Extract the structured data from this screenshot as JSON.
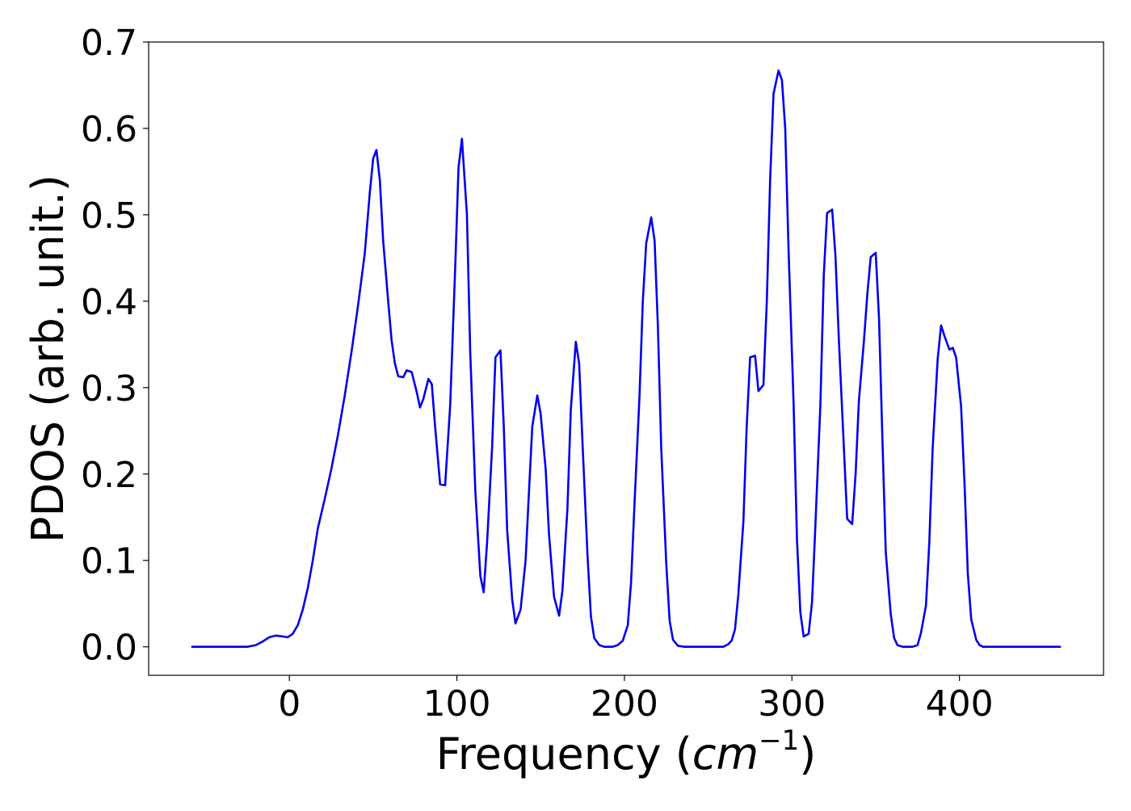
{
  "chart_data": {
    "type": "line",
    "title": "",
    "xlabel": "Frequency (cm⁻¹)",
    "xlabel_parts": {
      "prefix": "Frequency (",
      "italic": "cm",
      "superscript": "−1",
      "suffix": ")"
    },
    "ylabel": "PDOS (arb. unit.)",
    "xlim": [
      -84,
      486
    ],
    "ylim": [
      -0.033,
      0.7
    ],
    "xticks": [
      0,
      100,
      200,
      300,
      400
    ],
    "xtick_labels": [
      "0",
      "100",
      "200",
      "300",
      "400"
    ],
    "yticks": [
      0.0,
      0.1,
      0.2,
      0.3,
      0.4,
      0.5,
      0.6,
      0.7
    ],
    "ytick_labels": [
      "0.0",
      "0.1",
      "0.2",
      "0.3",
      "0.4",
      "0.5",
      "0.6",
      "0.7"
    ],
    "grid": false,
    "legend": "none",
    "series": [
      {
        "color": "#0000ee",
        "points": [
          [
            -58,
            0.0
          ],
          [
            -30,
            0.0
          ],
          [
            -25,
            0.0
          ],
          [
            -20,
            0.002
          ],
          [
            -16,
            0.006
          ],
          [
            -12,
            0.011
          ],
          [
            -8,
            0.013
          ],
          [
            -4,
            0.012
          ],
          [
            -1,
            0.011
          ],
          [
            2,
            0.015
          ],
          [
            5,
            0.025
          ],
          [
            8,
            0.043
          ],
          [
            11,
            0.068
          ],
          [
            14,
            0.1
          ],
          [
            17,
            0.137
          ],
          [
            21,
            0.17
          ],
          [
            25,
            0.205
          ],
          [
            29,
            0.245
          ],
          [
            33,
            0.29
          ],
          [
            37,
            0.34
          ],
          [
            41,
            0.395
          ],
          [
            45,
            0.455
          ],
          [
            48,
            0.525
          ],
          [
            50,
            0.565
          ],
          [
            52,
            0.575
          ],
          [
            54,
            0.54
          ],
          [
            56,
            0.47
          ],
          [
            59,
            0.4
          ],
          [
            61,
            0.355
          ],
          [
            63,
            0.328
          ],
          [
            65,
            0.313
          ],
          [
            68,
            0.312
          ],
          [
            70,
            0.32
          ],
          [
            73,
            0.318
          ],
          [
            76,
            0.295
          ],
          [
            78,
            0.277
          ],
          [
            80,
            0.287
          ],
          [
            83,
            0.31
          ],
          [
            85,
            0.304
          ],
          [
            87,
            0.255
          ],
          [
            90,
            0.188
          ],
          [
            93,
            0.187
          ],
          [
            96,
            0.28
          ],
          [
            99,
            0.44
          ],
          [
            101,
            0.555
          ],
          [
            103,
            0.588
          ],
          [
            106,
            0.5
          ],
          [
            108,
            0.34
          ],
          [
            111,
            0.18
          ],
          [
            114,
            0.082
          ],
          [
            116,
            0.063
          ],
          [
            118,
            0.12
          ],
          [
            121,
            0.23
          ],
          [
            123,
            0.335
          ],
          [
            126,
            0.343
          ],
          [
            128,
            0.255
          ],
          [
            130,
            0.135
          ],
          [
            133,
            0.055
          ],
          [
            135,
            0.027
          ],
          [
            138,
            0.043
          ],
          [
            141,
            0.1
          ],
          [
            143,
            0.178
          ],
          [
            145,
            0.255
          ],
          [
            148,
            0.291
          ],
          [
            150,
            0.27
          ],
          [
            153,
            0.205
          ],
          [
            155,
            0.13
          ],
          [
            158,
            0.058
          ],
          [
            161,
            0.036
          ],
          [
            163,
            0.065
          ],
          [
            166,
            0.16
          ],
          [
            168,
            0.275
          ],
          [
            171,
            0.353
          ],
          [
            173,
            0.328
          ],
          [
            175,
            0.235
          ],
          [
            178,
            0.105
          ],
          [
            180,
            0.035
          ],
          [
            182,
            0.01
          ],
          [
            185,
            0.002
          ],
          [
            188,
            0.0
          ],
          [
            193,
            0.0
          ],
          [
            196,
            0.002
          ],
          [
            199,
            0.007
          ],
          [
            202,
            0.025
          ],
          [
            204,
            0.075
          ],
          [
            206,
            0.165
          ],
          [
            209,
            0.29
          ],
          [
            211,
            0.4
          ],
          [
            213,
            0.467
          ],
          [
            216,
            0.497
          ],
          [
            218,
            0.47
          ],
          [
            220,
            0.37
          ],
          [
            222,
            0.23
          ],
          [
            225,
            0.095
          ],
          [
            227,
            0.03
          ],
          [
            229,
            0.008
          ],
          [
            232,
            0.001
          ],
          [
            236,
            0.0
          ],
          [
            259,
            0.0
          ],
          [
            262,
            0.003
          ],
          [
            264,
            0.007
          ],
          [
            266,
            0.02
          ],
          [
            268,
            0.06
          ],
          [
            271,
            0.145
          ],
          [
            273,
            0.255
          ],
          [
            275,
            0.335
          ],
          [
            278,
            0.337
          ],
          [
            280,
            0.296
          ],
          [
            283,
            0.303
          ],
          [
            285,
            0.4
          ],
          [
            287,
            0.54
          ],
          [
            289,
            0.64
          ],
          [
            292,
            0.667
          ],
          [
            294,
            0.656
          ],
          [
            296,
            0.6
          ],
          [
            298,
            0.46
          ],
          [
            301,
            0.28
          ],
          [
            303,
            0.125
          ],
          [
            305,
            0.04
          ],
          [
            307,
            0.012
          ],
          [
            310,
            0.015
          ],
          [
            312,
            0.052
          ],
          [
            314,
            0.14
          ],
          [
            317,
            0.28
          ],
          [
            319,
            0.43
          ],
          [
            321,
            0.502
          ],
          [
            324,
            0.506
          ],
          [
            326,
            0.452
          ],
          [
            328,
            0.355
          ],
          [
            331,
            0.23
          ],
          [
            333,
            0.148
          ],
          [
            336,
            0.142
          ],
          [
            338,
            0.2
          ],
          [
            340,
            0.285
          ],
          [
            343,
            0.355
          ],
          [
            345,
            0.408
          ],
          [
            347,
            0.451
          ],
          [
            350,
            0.456
          ],
          [
            352,
            0.38
          ],
          [
            354,
            0.24
          ],
          [
            356,
            0.11
          ],
          [
            359,
            0.038
          ],
          [
            361,
            0.01
          ],
          [
            363,
            0.002
          ],
          [
            366,
            0.0
          ],
          [
            372,
            0.0
          ],
          [
            375,
            0.002
          ],
          [
            377,
            0.016
          ],
          [
            380,
            0.048
          ],
          [
            382,
            0.12
          ],
          [
            384,
            0.23
          ],
          [
            387,
            0.333
          ],
          [
            389,
            0.372
          ],
          [
            391,
            0.36
          ],
          [
            394,
            0.344
          ],
          [
            396,
            0.346
          ],
          [
            398,
            0.335
          ],
          [
            401,
            0.278
          ],
          [
            403,
            0.19
          ],
          [
            405,
            0.085
          ],
          [
            407,
            0.032
          ],
          [
            410,
            0.008
          ],
          [
            412,
            0.002
          ],
          [
            414,
            0.0
          ],
          [
            460,
            0.0
          ]
        ]
      }
    ]
  }
}
